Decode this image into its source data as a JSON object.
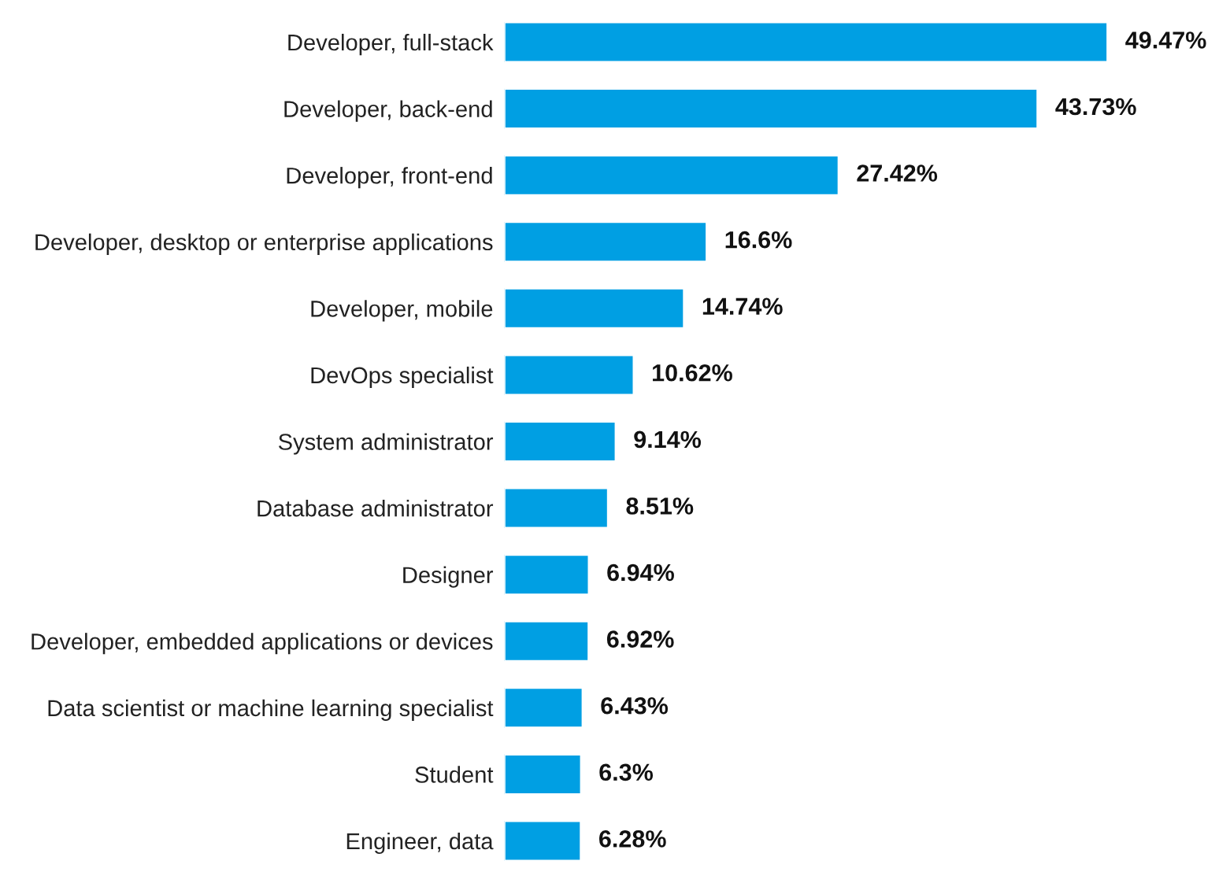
{
  "chart_data": {
    "type": "bar",
    "orientation": "horizontal",
    "color": "#009fe3",
    "categories": [
      "Developer, full-stack",
      "Developer, back-end",
      "Developer, front-end",
      "Developer, desktop or enterprise applications",
      "Developer, mobile",
      "DevOps specialist",
      "System administrator",
      "Database administrator",
      "Designer",
      "Developer, embedded applications or devices",
      "Data scientist or machine learning specialist",
      "Student",
      "Engineer, data"
    ],
    "values": [
      49.47,
      43.73,
      27.42,
      16.6,
      14.74,
      10.62,
      9.14,
      8.51,
      6.94,
      6.92,
      6.43,
      6.3,
      6.28
    ],
    "value_labels": [
      "49.47%",
      "43.73%",
      "27.42%",
      "16.6%",
      "14.74%",
      "10.62%",
      "9.14%",
      "8.51%",
      "6.94%",
      "6.92%",
      "6.43%",
      "6.3%",
      "6.28%"
    ],
    "grid": false,
    "legend": false
  }
}
